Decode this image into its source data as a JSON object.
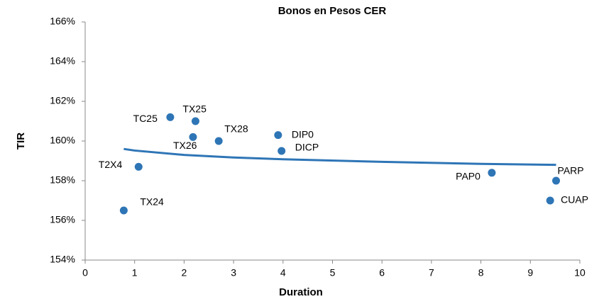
{
  "chart_data": {
    "type": "scatter",
    "title": "Bonos en Pesos CER",
    "xlabel": "Duration",
    "ylabel": "TIR",
    "color": "#2e75b6",
    "labels": [
      "TC25",
      "TX25",
      "TX26",
      "TX28",
      "DIP0",
      "DICP",
      "T2X4",
      "TX24",
      "PAP0",
      "PARP",
      "CUAP"
    ],
    "x": [
      1.72,
      2.23,
      2.18,
      2.7,
      3.9,
      3.97,
      1.08,
      0.78,
      8.22,
      9.52,
      9.4
    ],
    "values": [
      161.2,
      161.0,
      160.2,
      160.0,
      160.3,
      159.5,
      158.7,
      156.5,
      158.4,
      158.0,
      157.0
    ],
    "trendline": {
      "x": [
        0.78,
        1,
        2,
        3,
        4,
        6,
        8,
        9.52
      ],
      "values": [
        159.6,
        159.52,
        159.3,
        159.17,
        159.08,
        158.95,
        158.85,
        158.8
      ]
    },
    "xlim": [
      0,
      10
    ],
    "xticks": [
      0,
      1,
      2,
      3,
      4,
      5,
      6,
      7,
      8,
      9,
      10
    ],
    "ylim": [
      154,
      166
    ],
    "yticks": [
      {
        "value": 154,
        "label": "154%"
      },
      {
        "value": 156,
        "label": "156%"
      },
      {
        "value": 158,
        "label": "158%"
      },
      {
        "value": 160,
        "label": "160%"
      },
      {
        "value": 162,
        "label": "162%"
      },
      {
        "value": 164,
        "label": "164%"
      },
      {
        "value": 166,
        "label": "166%"
      }
    ],
    "grid": false
  }
}
